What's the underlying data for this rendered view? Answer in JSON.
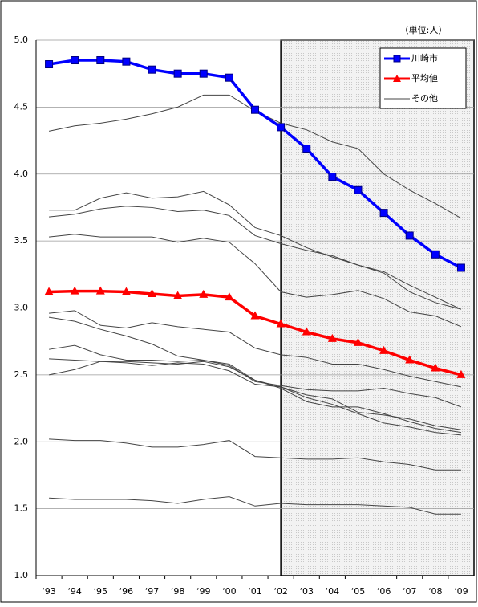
{
  "chart_data": {
    "type": "line",
    "unit_label": "（単位:人）",
    "categories": [
      "‘93",
      "‘94",
      "‘95",
      "‘96",
      "‘97",
      "‘98",
      "‘99",
      "‘00",
      "‘01",
      "‘02",
      "‘03",
      "‘04",
      "‘05",
      "‘06",
      "‘07",
      "‘08",
      "‘09"
    ],
    "series": [
      {
        "name": "川崎市",
        "color": "#0000ff",
        "marker": "square",
        "values": [
          4.82,
          4.85,
          4.85,
          4.84,
          4.78,
          4.75,
          4.75,
          4.72,
          4.48,
          4.35,
          4.19,
          3.98,
          3.88,
          3.71,
          3.54,
          3.4,
          3.3
        ]
      },
      {
        "name": "平均値",
        "color": "#ff0000",
        "marker": "triangle",
        "values": [
          3.12,
          3.125,
          3.125,
          3.12,
          3.105,
          3.09,
          3.1,
          3.08,
          2.94,
          2.88,
          2.82,
          2.77,
          2.74,
          2.68,
          2.61,
          2.55,
          2.5
        ]
      }
    ],
    "others": {
      "name": "その他",
      "color": "#444444",
      "lines": [
        [
          4.32,
          4.36,
          4.38,
          4.41,
          4.45,
          4.5,
          4.59,
          4.59,
          4.47,
          4.38,
          4.33,
          4.24,
          4.19,
          4.0,
          3.88,
          3.78,
          3.67
        ],
        [
          3.73,
          3.73,
          3.82,
          3.86,
          3.82,
          3.83,
          3.87,
          3.77,
          3.6,
          3.54,
          3.45,
          3.38,
          3.32,
          3.27,
          3.17,
          3.08,
          2.99
        ],
        [
          3.68,
          3.7,
          3.74,
          3.76,
          3.75,
          3.72,
          3.73,
          3.69,
          3.54,
          3.48,
          3.43,
          3.39,
          3.32,
          3.26,
          3.12,
          3.04,
          2.99
        ],
        [
          3.53,
          3.55,
          3.53,
          3.53,
          3.53,
          3.49,
          3.52,
          3.49,
          3.33,
          3.12,
          3.08,
          3.1,
          3.13,
          3.07,
          2.97,
          2.94,
          2.86
        ],
        [
          2.96,
          2.98,
          2.87,
          2.85,
          2.89,
          2.86,
          2.84,
          2.82,
          2.7,
          2.65,
          2.63,
          2.58,
          2.58,
          2.54,
          2.49,
          2.45,
          2.41
        ],
        [
          2.93,
          2.9,
          2.84,
          2.79,
          2.73,
          2.64,
          2.61,
          2.57,
          2.45,
          2.42,
          2.39,
          2.38,
          2.38,
          2.4,
          2.36,
          2.33,
          2.26
        ],
        [
          2.69,
          2.72,
          2.65,
          2.61,
          2.61,
          2.6,
          2.61,
          2.58,
          2.46,
          2.41,
          2.35,
          2.32,
          2.22,
          2.2,
          2.17,
          2.12,
          2.09
        ],
        [
          2.62,
          2.61,
          2.6,
          2.6,
          2.59,
          2.58,
          2.6,
          2.56,
          2.46,
          2.4,
          2.3,
          2.26,
          2.26,
          2.21,
          2.15,
          2.1,
          2.07
        ],
        [
          2.5,
          2.54,
          2.6,
          2.59,
          2.57,
          2.59,
          2.58,
          2.53,
          2.43,
          2.41,
          2.33,
          2.28,
          2.21,
          2.14,
          2.11,
          2.07,
          2.05
        ],
        [
          2.02,
          2.01,
          2.01,
          1.99,
          1.96,
          1.96,
          1.98,
          2.01,
          1.89,
          1.88,
          1.87,
          1.87,
          1.88,
          1.85,
          1.83,
          1.79,
          1.79
        ],
        [
          1.58,
          1.57,
          1.57,
          1.57,
          1.56,
          1.54,
          1.57,
          1.59,
          1.52,
          1.54,
          1.53,
          1.53,
          1.53,
          1.52,
          1.51,
          1.46,
          1.46
        ]
      ]
    },
    "ylim": [
      1,
      5
    ],
    "yticks": [
      {
        "value": 1,
        "label": "1.0"
      },
      1.5,
      {
        "value": 2,
        "label": "2.0"
      },
      2.5,
      {
        "value": 3,
        "label": "3.0"
      },
      3.5,
      {
        "value": 4,
        "label": "4.0"
      },
      4.5,
      {
        "value": 5,
        "label": "5.0"
      }
    ],
    "grid": true,
    "highlight_from": 9,
    "legend": "top-right"
  }
}
